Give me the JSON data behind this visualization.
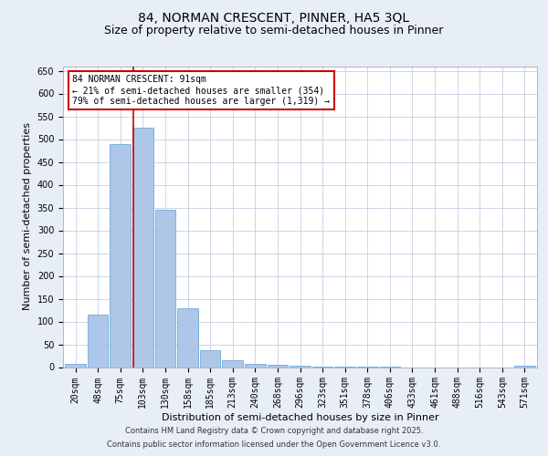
{
  "title1": "84, NORMAN CRESCENT, PINNER, HA5 3QL",
  "title2": "Size of property relative to semi-detached houses in Pinner",
  "xlabel": "Distribution of semi-detached houses by size in Pinner",
  "ylabel": "Number of semi-detached properties",
  "categories": [
    "20sqm",
    "48sqm",
    "75sqm",
    "103sqm",
    "130sqm",
    "158sqm",
    "185sqm",
    "213sqm",
    "240sqm",
    "268sqm",
    "296sqm",
    "323sqm",
    "351sqm",
    "378sqm",
    "406sqm",
    "433sqm",
    "461sqm",
    "488sqm",
    "516sqm",
    "543sqm",
    "571sqm"
  ],
  "values": [
    8,
    115,
    490,
    525,
    345,
    130,
    38,
    15,
    8,
    5,
    3,
    1,
    1,
    1,
    1,
    0,
    0,
    0,
    0,
    0,
    3
  ],
  "bar_color": "#aec6e8",
  "bar_edge_color": "#5a9fd4",
  "property_label": "84 NORMAN CRESCENT: 91sqm",
  "pct_smaller": 21,
  "pct_larger": 79,
  "count_smaller": 354,
  "count_larger": 1319,
  "vline_color": "#cc0000",
  "annotation_box_color": "#cc0000",
  "ylim": [
    0,
    660
  ],
  "yticks": [
    0,
    50,
    100,
    150,
    200,
    250,
    300,
    350,
    400,
    450,
    500,
    550,
    600,
    650
  ],
  "footer1": "Contains HM Land Registry data © Crown copyright and database right 2025.",
  "footer2": "Contains public sector information licensed under the Open Government Licence v3.0.",
  "bg_color": "#e8eef8",
  "plot_bg_color": "#ffffff",
  "title_fontsize": 10,
  "subtitle_fontsize": 9,
  "tick_fontsize": 7,
  "label_fontsize": 8,
  "footer_fontsize": 6,
  "ann_fontsize": 7
}
